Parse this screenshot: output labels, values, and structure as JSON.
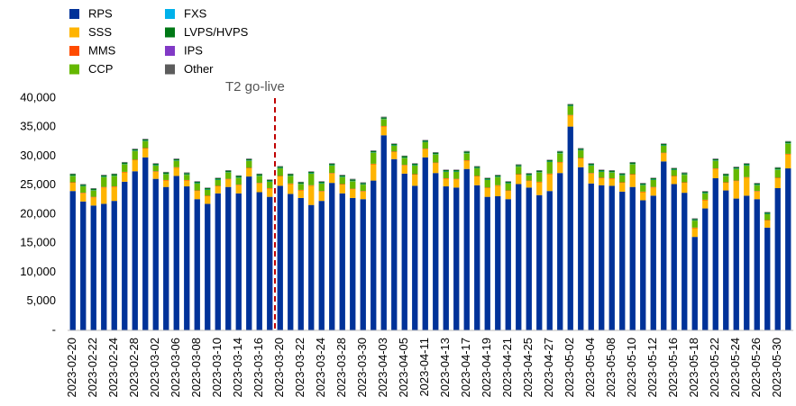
{
  "chart_data": {
    "type": "stacked_bar",
    "categories": [
      "2023-02-20",
      null,
      "2023-02-22",
      null,
      "2023-02-24",
      null,
      "2023-02-28",
      null,
      "2023-03-02",
      null,
      "2023-03-06",
      null,
      "2023-03-08",
      null,
      "2023-03-10",
      null,
      "2023-03-14",
      null,
      "2023-03-16",
      null,
      "2023-03-20",
      null,
      "2023-03-22",
      null,
      "2023-03-24",
      null,
      "2023-03-28",
      null,
      "2023-03-30",
      null,
      "2023-04-03",
      null,
      "2023-04-05",
      null,
      "2023-04-11",
      null,
      "2023-04-13",
      null,
      "2023-04-17",
      null,
      "2023-04-19",
      null,
      "2023-04-21",
      null,
      "2023-04-25",
      null,
      "2023-04-27",
      null,
      "2023-05-02",
      null,
      "2023-05-04",
      null,
      "2023-05-08",
      null,
      "2023-05-10",
      null,
      "2023-05-12",
      null,
      "2023-05-16",
      null,
      "2023-05-18",
      null,
      "2023-05-22",
      null,
      "2023-05-24",
      null,
      "2023-05-26",
      null,
      "2023-05-30",
      null
    ],
    "series": [
      {
        "name": "RPS",
        "color": "#003299",
        "values": [
          24000,
          22200,
          21500,
          21800,
          22300,
          25600,
          27400,
          29800,
          26100,
          24700,
          26600,
          24800,
          22600,
          21800,
          23600,
          24700,
          23600,
          26500,
          23800,
          23000,
          24900,
          23500,
          22800,
          21600,
          22300,
          25400,
          23600,
          22800,
          22600,
          25800,
          33600,
          29500,
          27000,
          24900,
          29800,
          27100,
          24800,
          24600,
          27800,
          25000,
          23000,
          23100,
          22600,
          25200,
          24600,
          23300,
          24000,
          27100,
          35100,
          28100,
          25300,
          25000,
          24900,
          23900,
          24700,
          22400,
          23200,
          29100,
          25200,
          23700,
          16100,
          21000,
          26200,
          24100,
          22700,
          23200,
          22600,
          17700,
          24500,
          27900
        ]
      },
      {
        "name": "SSS",
        "color": "#ffb400",
        "values": [
          1400,
          1400,
          1400,
          2800,
          2400,
          1600,
          1900,
          1500,
          1200,
          1100,
          1400,
          1000,
          1400,
          1300,
          1200,
          1300,
          1400,
          1400,
          1500,
          1400,
          1600,
          1700,
          1300,
          3300,
          1600,
          1600,
          1500,
          1500,
          1300,
          2800,
          1500,
          1200,
          1400,
          1900,
          1400,
          1700,
          1300,
          1400,
          1400,
          1500,
          1500,
          1800,
          1400,
          1600,
          1100,
          2200,
          2900,
          1800,
          1900,
          1500,
          1700,
          1200,
          1200,
          1500,
          2100,
          1400,
          1400,
          1400,
          1300,
          1700,
          1500,
          1400,
          1600,
          1300,
          3000,
          3100,
          1300,
          1200,
          1700,
          2400
        ]
      },
      {
        "name": "MMS",
        "color": "#ff4b00",
        "values": [
          100,
          100,
          100,
          100,
          100,
          100,
          100,
          100,
          100,
          100,
          100,
          100,
          100,
          100,
          100,
          100,
          100,
          100,
          100,
          100,
          100,
          100,
          100,
          100,
          100,
          100,
          100,
          100,
          100,
          100,
          100,
          100,
          100,
          100,
          100,
          100,
          100,
          100,
          100,
          100,
          100,
          100,
          100,
          100,
          100,
          100,
          100,
          100,
          100,
          100,
          100,
          100,
          100,
          100,
          100,
          100,
          100,
          100,
          100,
          100,
          100,
          100,
          100,
          100,
          100,
          100,
          100,
          100,
          100,
          100
        ]
      },
      {
        "name": "CCP",
        "color": "#65b800",
        "values": [
          1100,
          1100,
          1100,
          1700,
          1800,
          1300,
          1500,
          1200,
          1000,
          1000,
          1100,
          900,
          1200,
          1000,
          1000,
          1100,
          1200,
          1200,
          1200,
          1100,
          1300,
          1300,
          1000,
          2000,
          1300,
          1300,
          1200,
          1300,
          1100,
          1900,
          1200,
          1000,
          1200,
          1500,
          1100,
          1400,
          1100,
          1200,
          1200,
          1300,
          1300,
          1400,
          1200,
          1300,
          900,
          1600,
          2000,
          1500,
          1500,
          1300,
          1300,
          1000,
          1000,
          1200,
          1700,
          1100,
          1200,
          1200,
          1000,
          1300,
          1200,
          1100,
          1300,
          1100,
          2000,
          2000,
          1000,
          1000,
          1400,
          1800
        ]
      },
      {
        "name": "FXS",
        "color": "#00b1ea",
        "values": [
          50,
          50,
          50,
          50,
          50,
          50,
          50,
          50,
          50,
          50,
          50,
          50,
          50,
          50,
          50,
          50,
          50,
          50,
          50,
          50,
          50,
          50,
          50,
          50,
          50,
          50,
          50,
          50,
          50,
          50,
          50,
          50,
          50,
          50,
          50,
          50,
          50,
          50,
          50,
          50,
          50,
          50,
          50,
          50,
          50,
          50,
          50,
          50,
          50,
          50,
          50,
          50,
          50,
          50,
          50,
          50,
          50,
          50,
          50,
          50,
          50,
          50,
          50,
          50,
          50,
          50,
          50,
          50,
          50,
          50
        ]
      },
      {
        "name": "LVPS/HVPS",
        "color": "#007816",
        "values": [
          250,
          250,
          250,
          250,
          250,
          250,
          250,
          250,
          250,
          250,
          250,
          250,
          250,
          250,
          250,
          250,
          250,
          250,
          250,
          250,
          250,
          250,
          250,
          250,
          250,
          250,
          250,
          250,
          250,
          250,
          250,
          250,
          250,
          250,
          250,
          250,
          250,
          250,
          250,
          250,
          250,
          250,
          250,
          250,
          250,
          250,
          250,
          250,
          250,
          250,
          250,
          250,
          250,
          250,
          250,
          250,
          250,
          250,
          250,
          250,
          250,
          250,
          250,
          250,
          250,
          250,
          250,
          250,
          250,
          250
        ]
      },
      {
        "name": "IPS",
        "color": "#8139c6",
        "values": [
          30,
          30,
          30,
          30,
          30,
          30,
          30,
          30,
          30,
          30,
          30,
          30,
          30,
          30,
          30,
          30,
          30,
          30,
          30,
          30,
          30,
          30,
          30,
          30,
          30,
          30,
          30,
          30,
          30,
          30,
          30,
          30,
          30,
          30,
          30,
          30,
          30,
          30,
          30,
          30,
          30,
          30,
          30,
          30,
          30,
          30,
          30,
          30,
          30,
          30,
          30,
          30,
          30,
          30,
          30,
          30,
          30,
          30,
          30,
          30,
          30,
          30,
          30,
          30,
          30,
          30,
          30,
          30,
          30,
          30
        ]
      },
      {
        "name": "Other",
        "color": "#5c5c5c",
        "values": [
          70,
          70,
          70,
          70,
          70,
          70,
          70,
          70,
          70,
          70,
          70,
          70,
          70,
          70,
          70,
          70,
          70,
          70,
          70,
          70,
          70,
          70,
          70,
          70,
          70,
          70,
          70,
          70,
          70,
          70,
          70,
          70,
          70,
          70,
          70,
          70,
          70,
          70,
          70,
          70,
          70,
          70,
          70,
          70,
          70,
          70,
          70,
          70,
          70,
          70,
          70,
          70,
          70,
          70,
          70,
          70,
          70,
          70,
          70,
          70,
          70,
          70,
          70,
          70,
          70,
          70,
          70,
          70,
          70,
          70
        ]
      }
    ],
    "ylim": [
      0,
      40000
    ],
    "yticks": [
      {
        "value": 0,
        "label": "-"
      },
      {
        "value": 5000,
        "label": "5,000"
      },
      {
        "value": 10000,
        "label": "10,000"
      },
      {
        "value": 15000,
        "label": "15,000"
      },
      {
        "value": 20000,
        "label": "20,000"
      },
      {
        "value": 25000,
        "label": "25,000"
      },
      {
        "value": 30000,
        "label": "30,000"
      },
      {
        "value": 35000,
        "label": "35,000"
      },
      {
        "value": 40000,
        "label": "40,000"
      }
    ],
    "grid": false,
    "legend": "top-left",
    "annotation": {
      "text": "T2 go-live",
      "x": "2023-03-20",
      "color": "#c00000"
    }
  }
}
